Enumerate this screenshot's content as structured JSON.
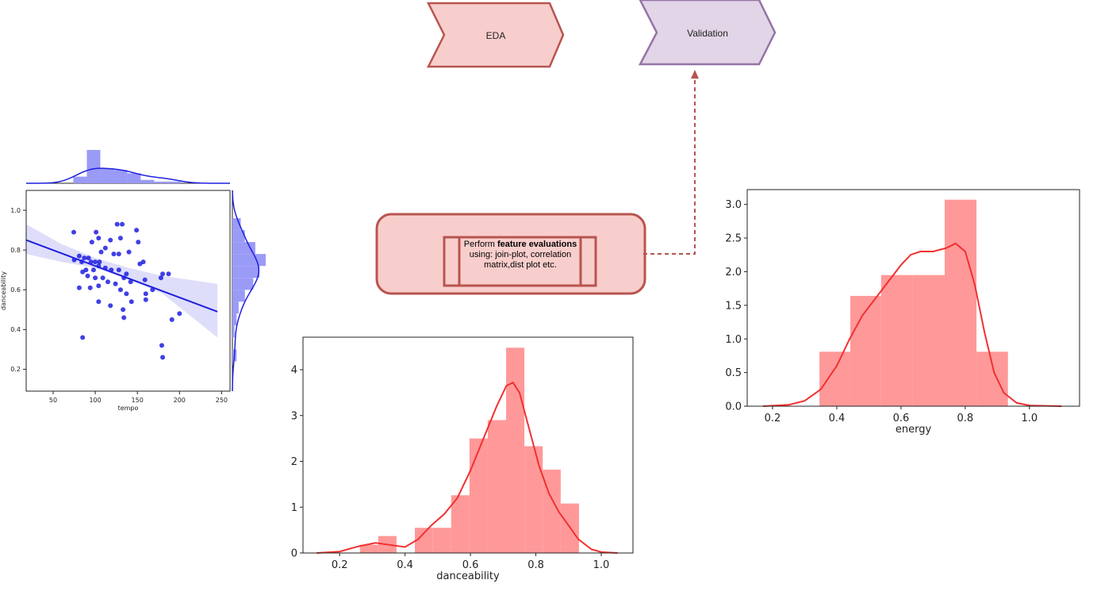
{
  "nodes": [
    {
      "label": "EDA"
    },
    {
      "label": "Validation"
    }
  ],
  "process": {
    "text": [
      "Perform ",
      "feature evaluations",
      " using: join-plot, correlation matrix,dist plot etc."
    ]
  },
  "charts": [
    {
      "type": "joint",
      "xlabel": "tempo",
      "ylabel": "danceability",
      "color": "#1f1fe0",
      "hist_color": "#9a9af7",
      "xlim": [
        18,
        260
      ],
      "ylim": [
        0.09,
        1.1
      ],
      "xticks": [
        50,
        100,
        150,
        200,
        250
      ],
      "yticks": [
        {
          "value": 0.2,
          "label": "0.2"
        },
        {
          "value": 0.4,
          "label": "0.4"
        },
        {
          "value": 0.6,
          "label": "0.6"
        },
        {
          "value": 0.8,
          "label": "0.8"
        },
        {
          "value": 1.0,
          "label": "1.0"
        }
      ],
      "x": [
        74.5,
        101,
        126,
        132,
        149,
        130,
        118,
        104,
        96,
        112,
        107,
        122,
        128,
        140,
        151,
        157,
        153,
        81,
        87,
        92,
        95,
        100,
        105,
        75,
        84,
        89,
        98,
        104,
        112,
        119,
        128,
        137,
        142,
        85,
        91,
        100,
        109,
        115,
        124,
        134,
        81,
        94,
        104,
        159,
        168,
        178,
        180,
        187,
        160,
        137,
        143,
        130,
        118,
        104,
        133,
        134,
        160,
        191,
        200,
        85,
        179,
        180
      ],
      "y": [
        0.89,
        0.89,
        0.93,
        0.93,
        0.9,
        0.86,
        0.85,
        0.86,
        0.84,
        0.81,
        0.79,
        0.78,
        0.78,
        0.79,
        0.84,
        0.74,
        0.73,
        0.77,
        0.76,
        0.76,
        0.74,
        0.74,
        0.74,
        0.75,
        0.74,
        0.7,
        0.7,
        0.72,
        0.71,
        0.7,
        0.7,
        0.68,
        0.64,
        0.69,
        0.67,
        0.66,
        0.66,
        0.64,
        0.63,
        0.66,
        0.61,
        0.61,
        0.62,
        0.65,
        0.6,
        0.66,
        0.68,
        0.68,
        0.58,
        0.58,
        0.54,
        0.6,
        0.52,
        0.54,
        0.5,
        0.46,
        0.55,
        0.45,
        0.48,
        0.36,
        0.32,
        0.26
      ],
      "fit": {
        "x": [
          18,
          245
        ],
        "y": [
          0.85,
          0.49
        ]
      },
      "band": {
        "x": [
          18,
          60,
          100,
          140,
          180,
          245
        ],
        "upper": [
          0.93,
          0.83,
          0.76,
          0.71,
          0.67,
          0.63
        ],
        "lower": [
          0.78,
          0.74,
          0.71,
          0.65,
          0.58,
          0.36
        ]
      },
      "marginal_x": {
        "bins": [
          74,
          90,
          106,
          122,
          138,
          154,
          170,
          186,
          202,
          218,
          234
        ],
        "counts": [
          4,
          20,
          9,
          8,
          6,
          2,
          1,
          1,
          0,
          0
        ]
      },
      "marginal_y": {
        "bins": [
          0.24,
          0.3,
          0.36,
          0.42,
          0.48,
          0.54,
          0.6,
          0.66,
          0.72,
          0.78,
          0.84,
          0.9,
          0.96
        ],
        "counts": [
          2,
          0,
          1,
          2,
          3,
          6,
          10,
          13,
          16,
          11,
          6,
          4
        ]
      }
    },
    {
      "type": "dist",
      "xlabel": "danceability",
      "color": "#f23030",
      "hist_color": "#ff9999",
      "xlim": [
        0.088,
        1.097
      ],
      "ylim": [
        0,
        4.71
      ],
      "xticks": [
        {
          "value": 0.2,
          "label": "0.2"
        },
        {
          "value": 0.4,
          "label": "0.4"
        },
        {
          "value": 0.6,
          "label": "0.6"
        },
        {
          "value": 0.8,
          "label": "0.8"
        },
        {
          "value": 1.0,
          "label": "1.0"
        }
      ],
      "yticks": [
        0,
        1,
        2,
        3,
        4
      ],
      "bins": [
        0.262,
        0.318,
        0.374,
        0.43,
        0.485,
        0.541,
        0.597,
        0.653,
        0.709,
        0.765,
        0.821,
        0.876,
        0.932
      ],
      "values": [
        0.18,
        0.37,
        0,
        0.55,
        0.55,
        1.26,
        2.5,
        2.9,
        4.48,
        2.33,
        1.82,
        1.08
      ],
      "kde": {
        "x": [
          0.13,
          0.2,
          0.26,
          0.31,
          0.36,
          0.4,
          0.44,
          0.48,
          0.52,
          0.56,
          0.6,
          0.64,
          0.68,
          0.71,
          0.73,
          0.75,
          0.78,
          0.81,
          0.84,
          0.87,
          0.9,
          0.93,
          0.97,
          1.0,
          1.05
        ],
        "y": [
          0.0,
          0.03,
          0.15,
          0.22,
          0.17,
          0.13,
          0.3,
          0.6,
          0.85,
          1.2,
          1.8,
          2.5,
          3.2,
          3.65,
          3.72,
          3.5,
          2.7,
          1.9,
          1.3,
          0.9,
          0.6,
          0.3,
          0.08,
          0.02,
          0.0
        ]
      }
    },
    {
      "type": "dist",
      "xlabel": "energy",
      "color": "#f23030",
      "hist_color": "#ff9999",
      "xlim": [
        0.121,
        1.156
      ],
      "ylim": [
        0,
        3.22
      ],
      "xticks": [
        {
          "value": 0.2,
          "label": "0.2"
        },
        {
          "value": 0.4,
          "label": "0.4"
        },
        {
          "value": 0.6,
          "label": "0.6"
        },
        {
          "value": 0.8,
          "label": "0.8"
        },
        {
          "value": 1.0,
          "label": "1.0"
        }
      ],
      "yticks": [
        {
          "value": 0,
          "label": "0.0"
        },
        {
          "value": 0.5,
          "label": "0.5"
        },
        {
          "value": 1.0,
          "label": "1.0"
        },
        {
          "value": 1.5,
          "label": "1.5"
        },
        {
          "value": 2.0,
          "label": "2.0"
        },
        {
          "value": 2.5,
          "label": "2.5"
        },
        {
          "value": 3.0,
          "label": "3.0"
        }
      ],
      "bins": [
        0.346,
        0.442,
        0.538,
        0.637,
        0.736,
        0.835,
        0.933
      ],
      "values": [
        0.81,
        1.64,
        1.95,
        1.95,
        3.07,
        0.81
      ],
      "kde": {
        "x": [
          0.17,
          0.25,
          0.3,
          0.35,
          0.4,
          0.44,
          0.48,
          0.52,
          0.56,
          0.6,
          0.63,
          0.66,
          0.7,
          0.74,
          0.77,
          0.8,
          0.83,
          0.86,
          0.89,
          0.92,
          0.96,
          1.0,
          1.1
        ],
        "y": [
          0.0,
          0.02,
          0.08,
          0.25,
          0.6,
          1.0,
          1.35,
          1.6,
          1.85,
          2.1,
          2.25,
          2.3,
          2.3,
          2.35,
          2.42,
          2.3,
          1.8,
          1.1,
          0.5,
          0.2,
          0.05,
          0.01,
          0.0
        ]
      }
    }
  ]
}
